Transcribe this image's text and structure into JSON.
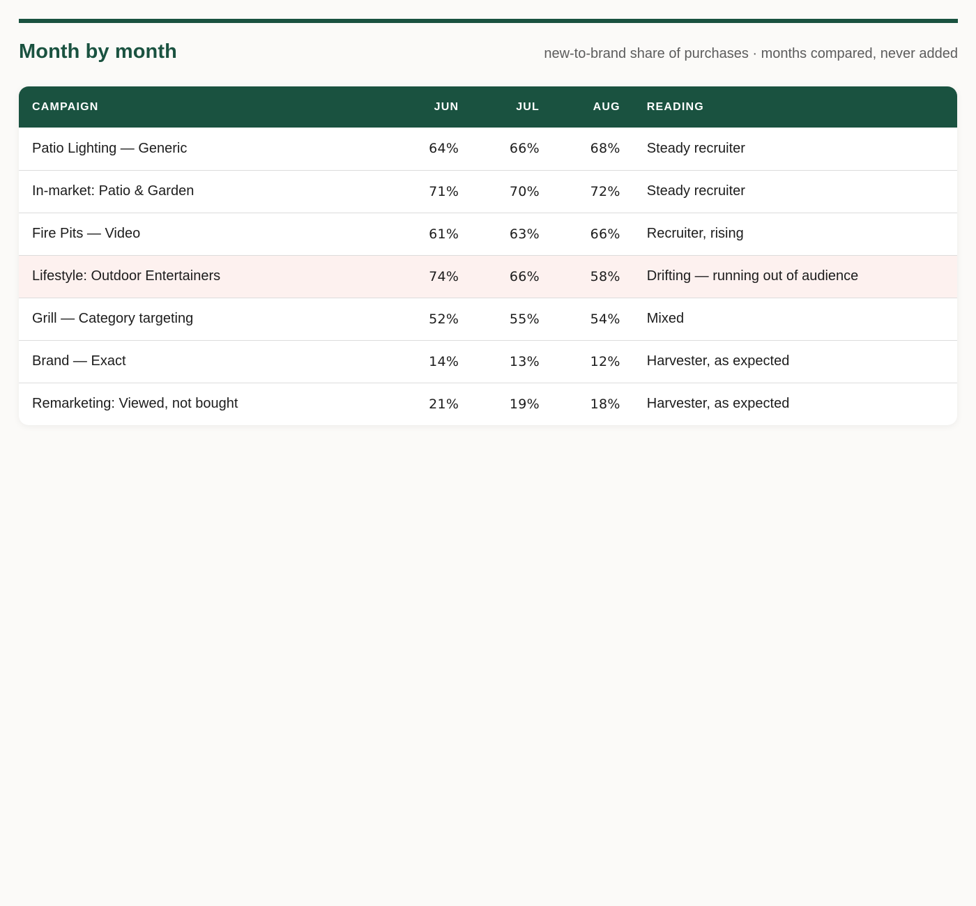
{
  "page": {
    "title": "Month by month",
    "subtitle": "new-to-brand share of purchases · months compared, never added",
    "accent_color": "#1a5240",
    "highlight_row_color": "#fdf1ef"
  },
  "table": {
    "headers": {
      "campaign": "Campaign",
      "jun": "Jun",
      "jul": "Jul",
      "aug": "Aug",
      "reading": "Reading"
    },
    "rows": [
      {
        "campaign": "Patio Lighting — Generic",
        "jun": "64%",
        "jul": "66%",
        "aug": "68%",
        "reading": "Steady recruiter",
        "highlighted": false
      },
      {
        "campaign": "In-market: Patio & Garden",
        "jun": "71%",
        "jul": "70%",
        "aug": "72%",
        "reading": "Steady recruiter",
        "highlighted": false
      },
      {
        "campaign": "Fire Pits — Video",
        "jun": "61%",
        "jul": "63%",
        "aug": "66%",
        "reading": "Recruiter, rising",
        "highlighted": false
      },
      {
        "campaign": "Lifestyle: Outdoor Entertainers",
        "jun": "74%",
        "jul": "66%",
        "aug": "58%",
        "reading": "Drifting — running out of audience",
        "highlighted": true
      },
      {
        "campaign": "Grill — Category targeting",
        "jun": "52%",
        "jul": "55%",
        "aug": "54%",
        "reading": "Mixed",
        "highlighted": false
      },
      {
        "campaign": "Brand — Exact",
        "jun": "14%",
        "jul": "13%",
        "aug": "12%",
        "reading": "Harvester, as expected",
        "highlighted": false
      },
      {
        "campaign": "Remarketing: Viewed, not bought",
        "jun": "21%",
        "jul": "19%",
        "aug": "18%",
        "reading": "Harvester, as expected",
        "highlighted": false
      }
    ]
  }
}
